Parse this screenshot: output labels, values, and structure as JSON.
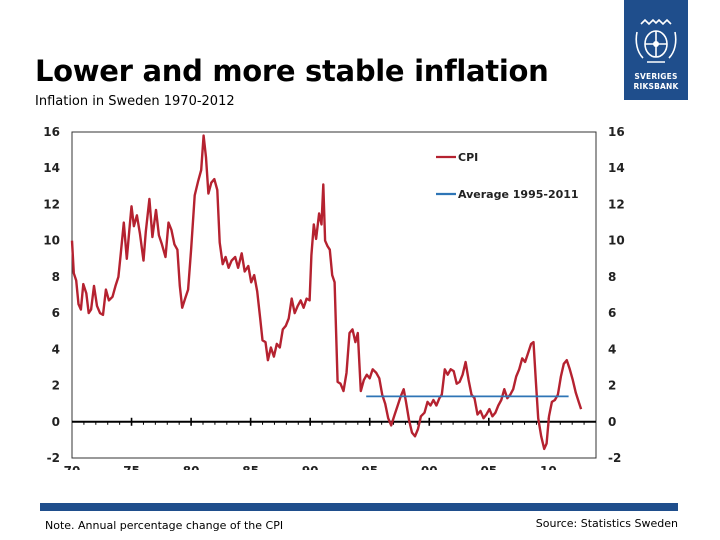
{
  "header": {
    "title": "Lower and more stable inflation",
    "subtitle": "Inflation in Sweden 1970-2012"
  },
  "logo": {
    "icon": "riksbank-crest-icon",
    "line1": "SVERIGES",
    "line2": "RIKSBANK"
  },
  "footer": {
    "note": "Note. Annual percentage change of the CPI",
    "source": "Source: Statistics Sweden"
  },
  "colors": {
    "cpi": "#b52230",
    "average": "#2e75b6",
    "brand": "#1f4e8c",
    "zero_line": "#000000"
  },
  "chart_data": {
    "type": "line",
    "title": "Inflation in Sweden 1970-2012",
    "xlabel": "",
    "ylabel": "",
    "xlim": [
      1970,
      2014
    ],
    "ylim": [
      -2,
      16
    ],
    "x_ticks": [
      1970,
      1975,
      1980,
      1985,
      1990,
      1995,
      2000,
      2005,
      2010
    ],
    "x_tick_labels": [
      "70",
      "75",
      "80",
      "85",
      "90",
      "95",
      "00",
      "05",
      "10"
    ],
    "y_ticks": [
      -2,
      0,
      2,
      4,
      6,
      8,
      10,
      12,
      14,
      16
    ],
    "y_tick_labels": [
      "-2",
      "0",
      "2",
      "4",
      "6",
      "8",
      "10",
      "12",
      "14",
      "16"
    ],
    "legend": {
      "placement": "top-right"
    },
    "series": [
      {
        "name": "CPI",
        "points": [
          [
            1970.0,
            10.0
          ],
          [
            1970.15,
            8.2
          ],
          [
            1970.35,
            7.8
          ],
          [
            1970.55,
            6.5
          ],
          [
            1970.75,
            6.2
          ],
          [
            1970.95,
            7.6
          ],
          [
            1971.2,
            7.1
          ],
          [
            1971.4,
            6.0
          ],
          [
            1971.6,
            6.2
          ],
          [
            1971.85,
            7.5
          ],
          [
            1972.1,
            6.4
          ],
          [
            1972.35,
            6.0
          ],
          [
            1972.6,
            5.9
          ],
          [
            1972.85,
            7.3
          ],
          [
            1973.1,
            6.7
          ],
          [
            1973.4,
            6.9
          ],
          [
            1973.65,
            7.5
          ],
          [
            1973.9,
            8.0
          ],
          [
            1974.1,
            9.3
          ],
          [
            1974.35,
            11.0
          ],
          [
            1974.6,
            9.0
          ],
          [
            1974.8,
            10.5
          ],
          [
            1975.0,
            11.9
          ],
          [
            1975.2,
            10.8
          ],
          [
            1975.45,
            11.4
          ],
          [
            1975.7,
            10.4
          ],
          [
            1976.0,
            8.9
          ],
          [
            1976.2,
            10.5
          ],
          [
            1976.5,
            12.3
          ],
          [
            1976.75,
            10.2
          ],
          [
            1977.05,
            11.7
          ],
          [
            1977.3,
            10.3
          ],
          [
            1977.55,
            9.8
          ],
          [
            1977.85,
            9.1
          ],
          [
            1978.1,
            11.0
          ],
          [
            1978.35,
            10.6
          ],
          [
            1978.6,
            9.8
          ],
          [
            1978.85,
            9.5
          ],
          [
            1979.05,
            7.5
          ],
          [
            1979.25,
            6.3
          ],
          [
            1979.5,
            6.8
          ],
          [
            1979.75,
            7.3
          ],
          [
            1980.0,
            9.5
          ],
          [
            1980.3,
            12.5
          ],
          [
            1980.6,
            13.3
          ],
          [
            1980.85,
            13.9
          ],
          [
            1981.05,
            15.8
          ],
          [
            1981.25,
            14.6
          ],
          [
            1981.45,
            12.6
          ],
          [
            1981.7,
            13.2
          ],
          [
            1981.95,
            13.4
          ],
          [
            1982.2,
            12.8
          ],
          [
            1982.4,
            9.9
          ],
          [
            1982.65,
            8.7
          ],
          [
            1982.9,
            9.1
          ],
          [
            1983.15,
            8.5
          ],
          [
            1983.4,
            8.9
          ],
          [
            1983.7,
            9.1
          ],
          [
            1983.95,
            8.5
          ],
          [
            1984.25,
            9.3
          ],
          [
            1984.5,
            8.3
          ],
          [
            1984.8,
            8.6
          ],
          [
            1985.05,
            7.7
          ],
          [
            1985.3,
            8.1
          ],
          [
            1985.55,
            7.2
          ],
          [
            1985.8,
            5.7
          ],
          [
            1986.0,
            4.5
          ],
          [
            1986.25,
            4.4
          ],
          [
            1986.45,
            3.4
          ],
          [
            1986.7,
            4.1
          ],
          [
            1986.95,
            3.6
          ],
          [
            1987.2,
            4.3
          ],
          [
            1987.45,
            4.1
          ],
          [
            1987.7,
            5.1
          ],
          [
            1987.95,
            5.3
          ],
          [
            1988.2,
            5.7
          ],
          [
            1988.45,
            6.8
          ],
          [
            1988.7,
            6.0
          ],
          [
            1988.95,
            6.4
          ],
          [
            1989.2,
            6.7
          ],
          [
            1989.45,
            6.3
          ],
          [
            1989.7,
            6.8
          ],
          [
            1989.95,
            6.7
          ],
          [
            1990.1,
            9.2
          ],
          [
            1990.3,
            10.9
          ],
          [
            1990.5,
            10.1
          ],
          [
            1990.75,
            11.5
          ],
          [
            1990.95,
            10.9
          ],
          [
            1991.1,
            13.1
          ],
          [
            1991.25,
            10.0
          ],
          [
            1991.45,
            9.7
          ],
          [
            1991.65,
            9.5
          ],
          [
            1991.85,
            8.1
          ],
          [
            1992.05,
            7.7
          ],
          [
            1992.3,
            2.2
          ],
          [
            1992.55,
            2.1
          ],
          [
            1992.8,
            1.7
          ],
          [
            1993.05,
            2.7
          ],
          [
            1993.3,
            4.9
          ],
          [
            1993.55,
            5.1
          ],
          [
            1993.8,
            4.4
          ],
          [
            1994.0,
            4.9
          ],
          [
            1994.25,
            1.7
          ],
          [
            1994.5,
            2.3
          ],
          [
            1994.75,
            2.6
          ],
          [
            1995.0,
            2.4
          ],
          [
            1995.25,
            2.9
          ],
          [
            1995.55,
            2.7
          ],
          [
            1995.8,
            2.4
          ],
          [
            1996.05,
            1.5
          ],
          [
            1996.3,
            1.0
          ],
          [
            1996.55,
            0.2
          ],
          [
            1996.8,
            -0.2
          ],
          [
            1997.1,
            0.4
          ],
          [
            1997.35,
            0.9
          ],
          [
            1997.6,
            1.4
          ],
          [
            1997.85,
            1.8
          ],
          [
            1998.05,
            1.1
          ],
          [
            1998.3,
            0.1
          ],
          [
            1998.55,
            -0.6
          ],
          [
            1998.8,
            -0.8
          ],
          [
            1999.05,
            -0.4
          ],
          [
            1999.3,
            0.3
          ],
          [
            1999.6,
            0.5
          ],
          [
            1999.85,
            1.1
          ],
          [
            2000.1,
            0.9
          ],
          [
            2000.35,
            1.2
          ],
          [
            2000.6,
            0.9
          ],
          [
            2000.85,
            1.3
          ],
          [
            2001.05,
            1.5
          ],
          [
            2001.3,
            2.9
          ],
          [
            2001.55,
            2.6
          ],
          [
            2001.8,
            2.9
          ],
          [
            2002.05,
            2.8
          ],
          [
            2002.3,
            2.1
          ],
          [
            2002.55,
            2.2
          ],
          [
            2002.8,
            2.6
          ],
          [
            2003.05,
            3.3
          ],
          [
            2003.3,
            2.3
          ],
          [
            2003.55,
            1.5
          ],
          [
            2003.8,
            1.3
          ],
          [
            2004.05,
            0.4
          ],
          [
            2004.3,
            0.6
          ],
          [
            2004.55,
            0.2
          ],
          [
            2004.8,
            0.4
          ],
          [
            2005.05,
            0.7
          ],
          [
            2005.3,
            0.3
          ],
          [
            2005.55,
            0.5
          ],
          [
            2005.8,
            0.9
          ],
          [
            2006.05,
            1.2
          ],
          [
            2006.3,
            1.8
          ],
          [
            2006.55,
            1.3
          ],
          [
            2006.8,
            1.5
          ],
          [
            2007.05,
            1.8
          ],
          [
            2007.3,
            2.5
          ],
          [
            2007.55,
            2.9
          ],
          [
            2007.8,
            3.5
          ],
          [
            2008.05,
            3.3
          ],
          [
            2008.3,
            3.8
          ],
          [
            2008.55,
            4.3
          ],
          [
            2008.75,
            4.4
          ],
          [
            2008.95,
            2.2
          ],
          [
            2009.15,
            0.2
          ],
          [
            2009.4,
            -0.8
          ],
          [
            2009.65,
            -1.5
          ],
          [
            2009.85,
            -1.2
          ],
          [
            2010.05,
            0.3
          ],
          [
            2010.3,
            1.1
          ],
          [
            2010.55,
            1.2
          ],
          [
            2010.8,
            1.5
          ],
          [
            2011.05,
            2.5
          ],
          [
            2011.3,
            3.2
          ],
          [
            2011.55,
            3.4
          ],
          [
            2011.8,
            2.9
          ],
          [
            2012.05,
            2.3
          ],
          [
            2012.3,
            1.6
          ],
          [
            2012.55,
            1.1
          ],
          [
            2012.75,
            0.7
          ]
        ]
      },
      {
        "name": "Average 1995-2011",
        "points": [
          [
            1994.7,
            1.4
          ],
          [
            2011.7,
            1.4
          ]
        ]
      }
    ]
  }
}
